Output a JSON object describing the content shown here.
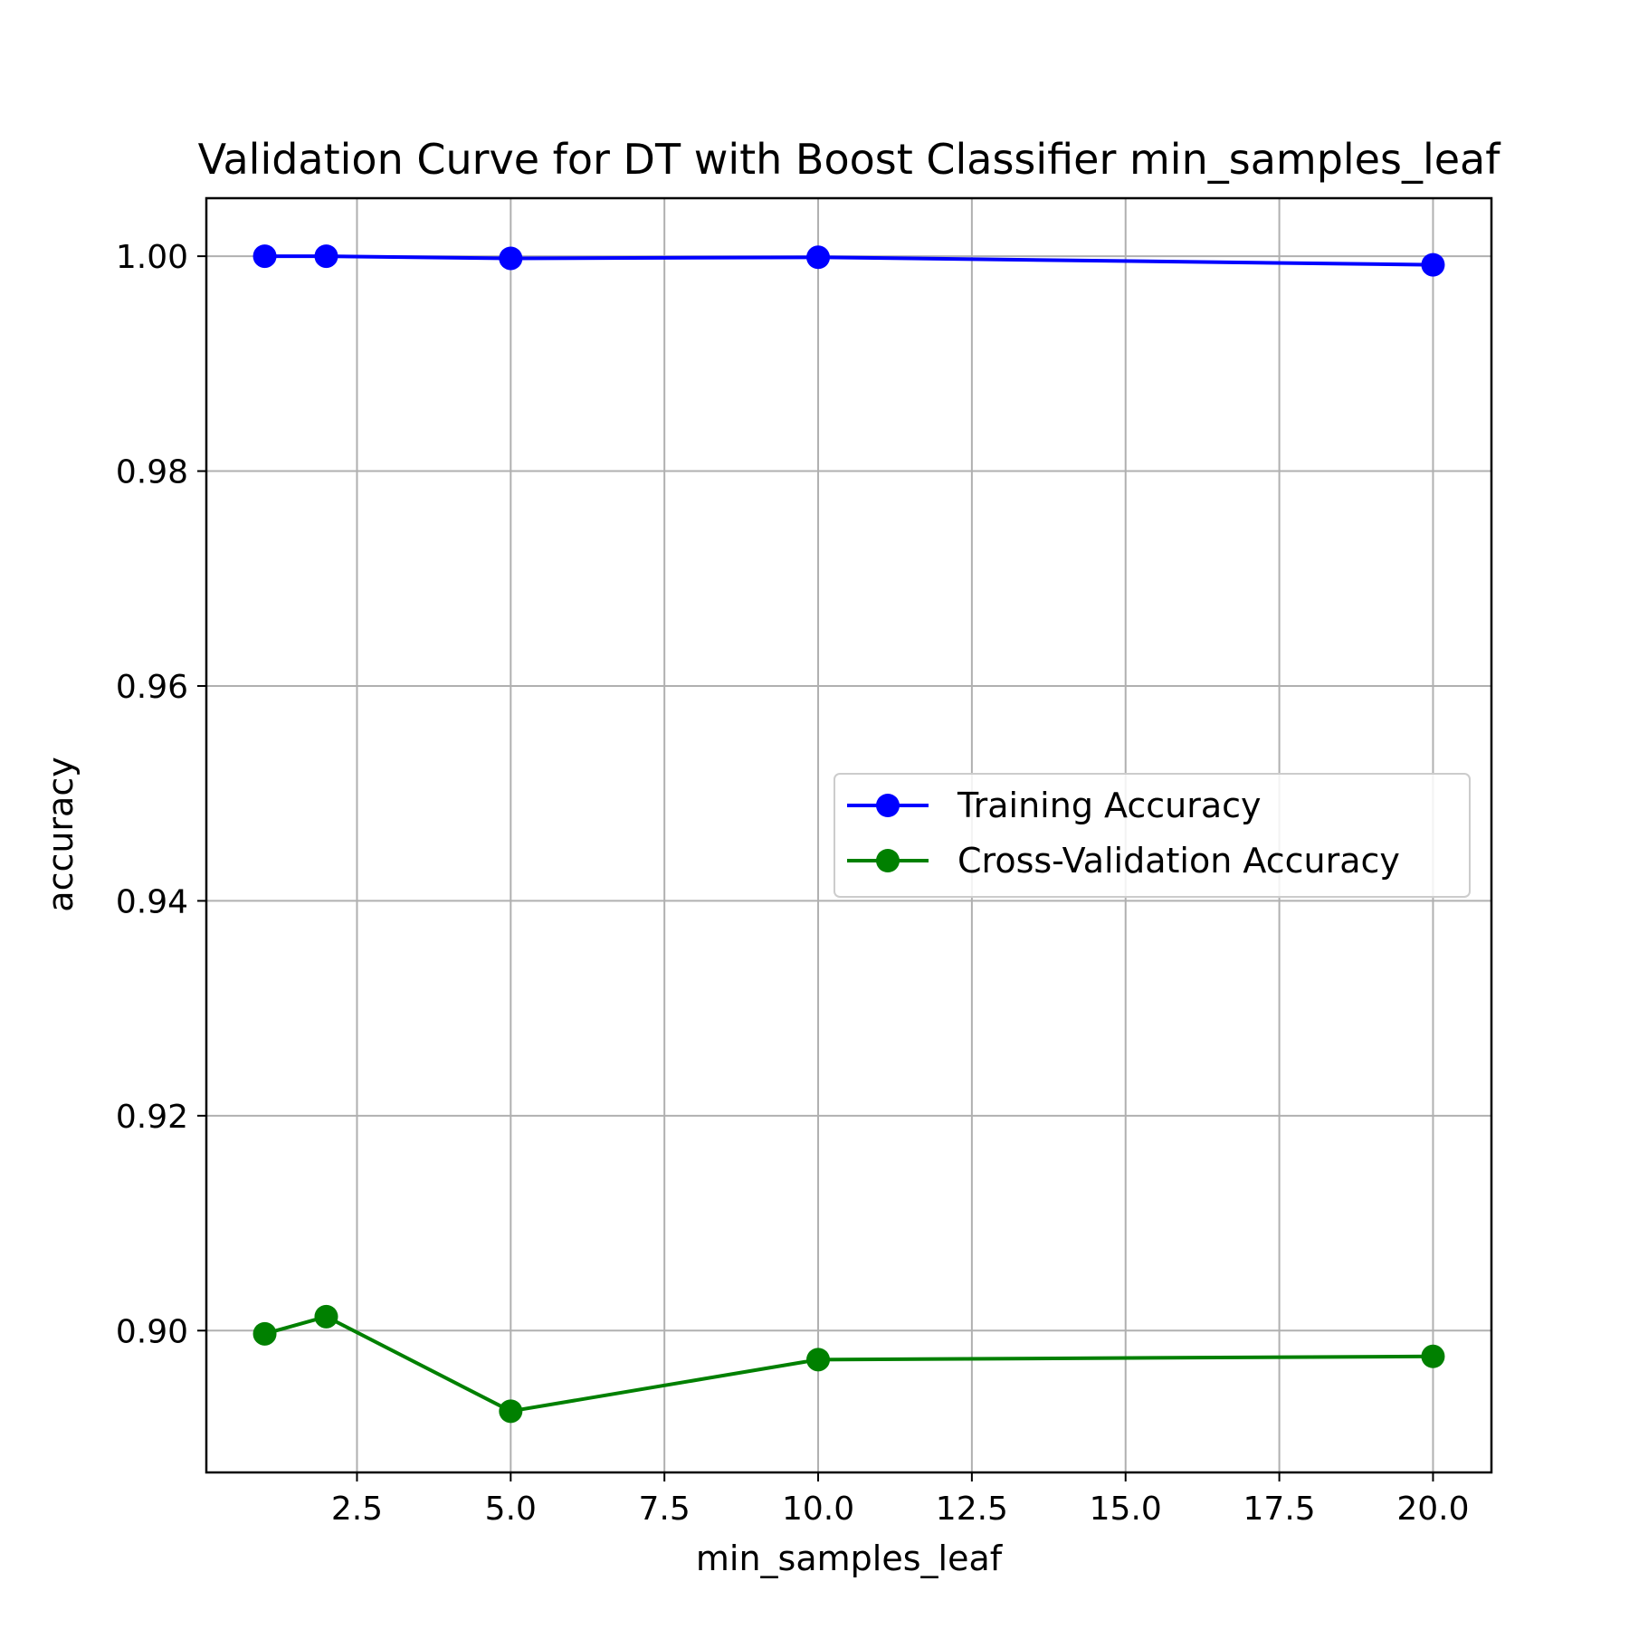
{
  "chart_data": {
    "type": "line",
    "title": "Validation Curve for DT with Boost Classifier min_samples_leaf",
    "xlabel": "min_samples_leaf",
    "ylabel": "accuracy",
    "xlim": [
      0.05,
      20.95
    ],
    "ylim": [
      0.8868,
      1.0054
    ],
    "xticks": [
      2.5,
      5.0,
      7.5,
      10.0,
      12.5,
      15.0,
      17.5,
      20.0
    ],
    "xtick_labels": [
      "2.5",
      "5.0",
      "7.5",
      "10.0",
      "12.5",
      "15.0",
      "17.5",
      "20.0"
    ],
    "yticks": [
      0.9,
      0.92,
      0.94,
      0.96,
      0.98,
      1.0
    ],
    "ytick_labels": [
      "0.90",
      "0.92",
      "0.94",
      "0.96",
      "0.98",
      "1.00"
    ],
    "grid": true,
    "legend_position": "center-right",
    "x": [
      1,
      2,
      5,
      10,
      20
    ],
    "series": [
      {
        "name": "Training Accuracy",
        "color": "#0000ff",
        "marker": "circle",
        "values": [
          1.0,
          1.0,
          0.9998,
          0.9999,
          0.9992
        ]
      },
      {
        "name": "Cross-Validation Accuracy",
        "color": "#008000",
        "marker": "circle",
        "values": [
          0.8997,
          0.9013,
          0.8925,
          0.8973,
          0.8976
        ]
      }
    ]
  }
}
